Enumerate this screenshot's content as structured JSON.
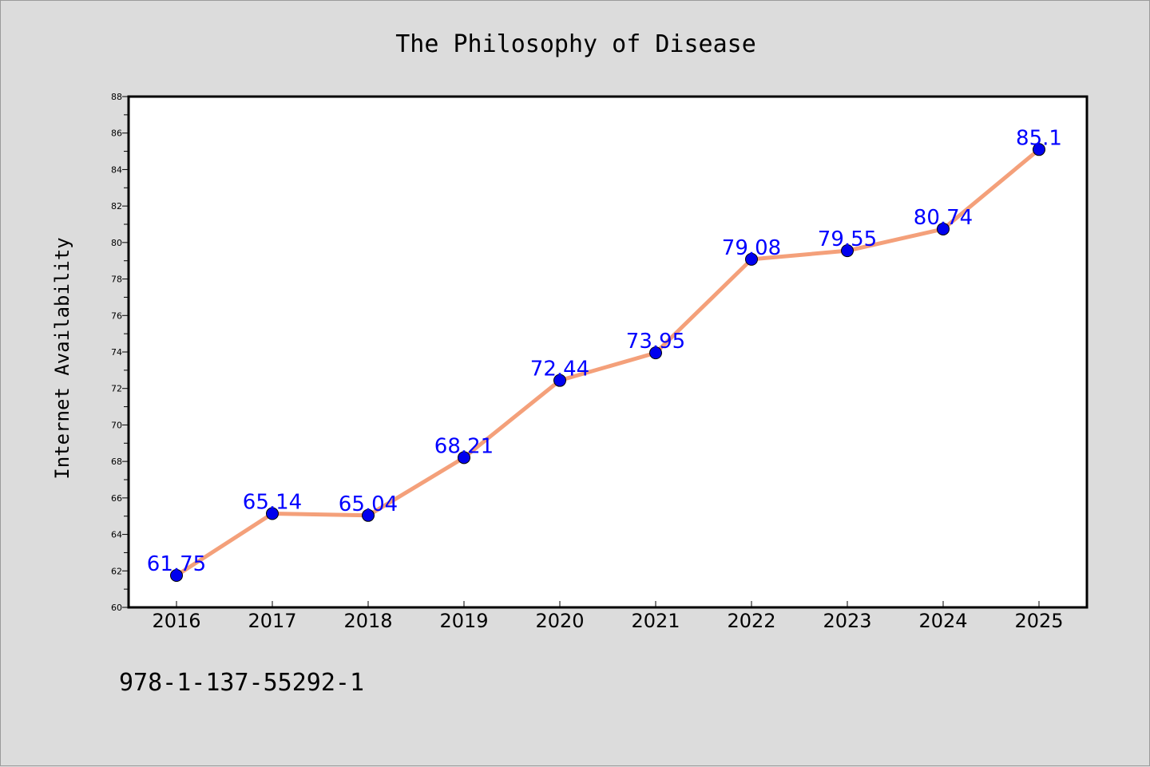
{
  "chart_data": {
    "type": "line",
    "title": "The Philosophy of Disease",
    "xlabel": "",
    "ylabel": "Internet Availability",
    "x": [
      "2016",
      "2017",
      "2018",
      "2019",
      "2020",
      "2021",
      "2022",
      "2023",
      "2024",
      "2025"
    ],
    "series": [
      {
        "values": [
          61.75,
          65.14,
          65.04,
          68.21,
          72.44,
          73.95,
          79.08,
          79.55,
          80.74,
          85.1
        ],
        "labels": [
          "61.75",
          "65.14",
          "65.04",
          "68.21",
          "72.44",
          "73.95",
          "79.08",
          "79.55",
          "80.74",
          "85.1"
        ],
        "line_color": "#f4a07a",
        "marker_color": "#0000ee"
      }
    ],
    "ylim": [
      60,
      88
    ],
    "yticks": [
      "60",
      "62",
      "64",
      "66",
      "68",
      "70",
      "72",
      "74",
      "76",
      "78",
      "80",
      "82",
      "84",
      "86",
      "88"
    ],
    "grid": false,
    "legend": "none"
  },
  "footer": {
    "text": "978-1-137-55292-1"
  },
  "colors": {
    "background": "#dcdcdc",
    "plot_background": "#ffffff",
    "data_label": "#0000ff"
  }
}
